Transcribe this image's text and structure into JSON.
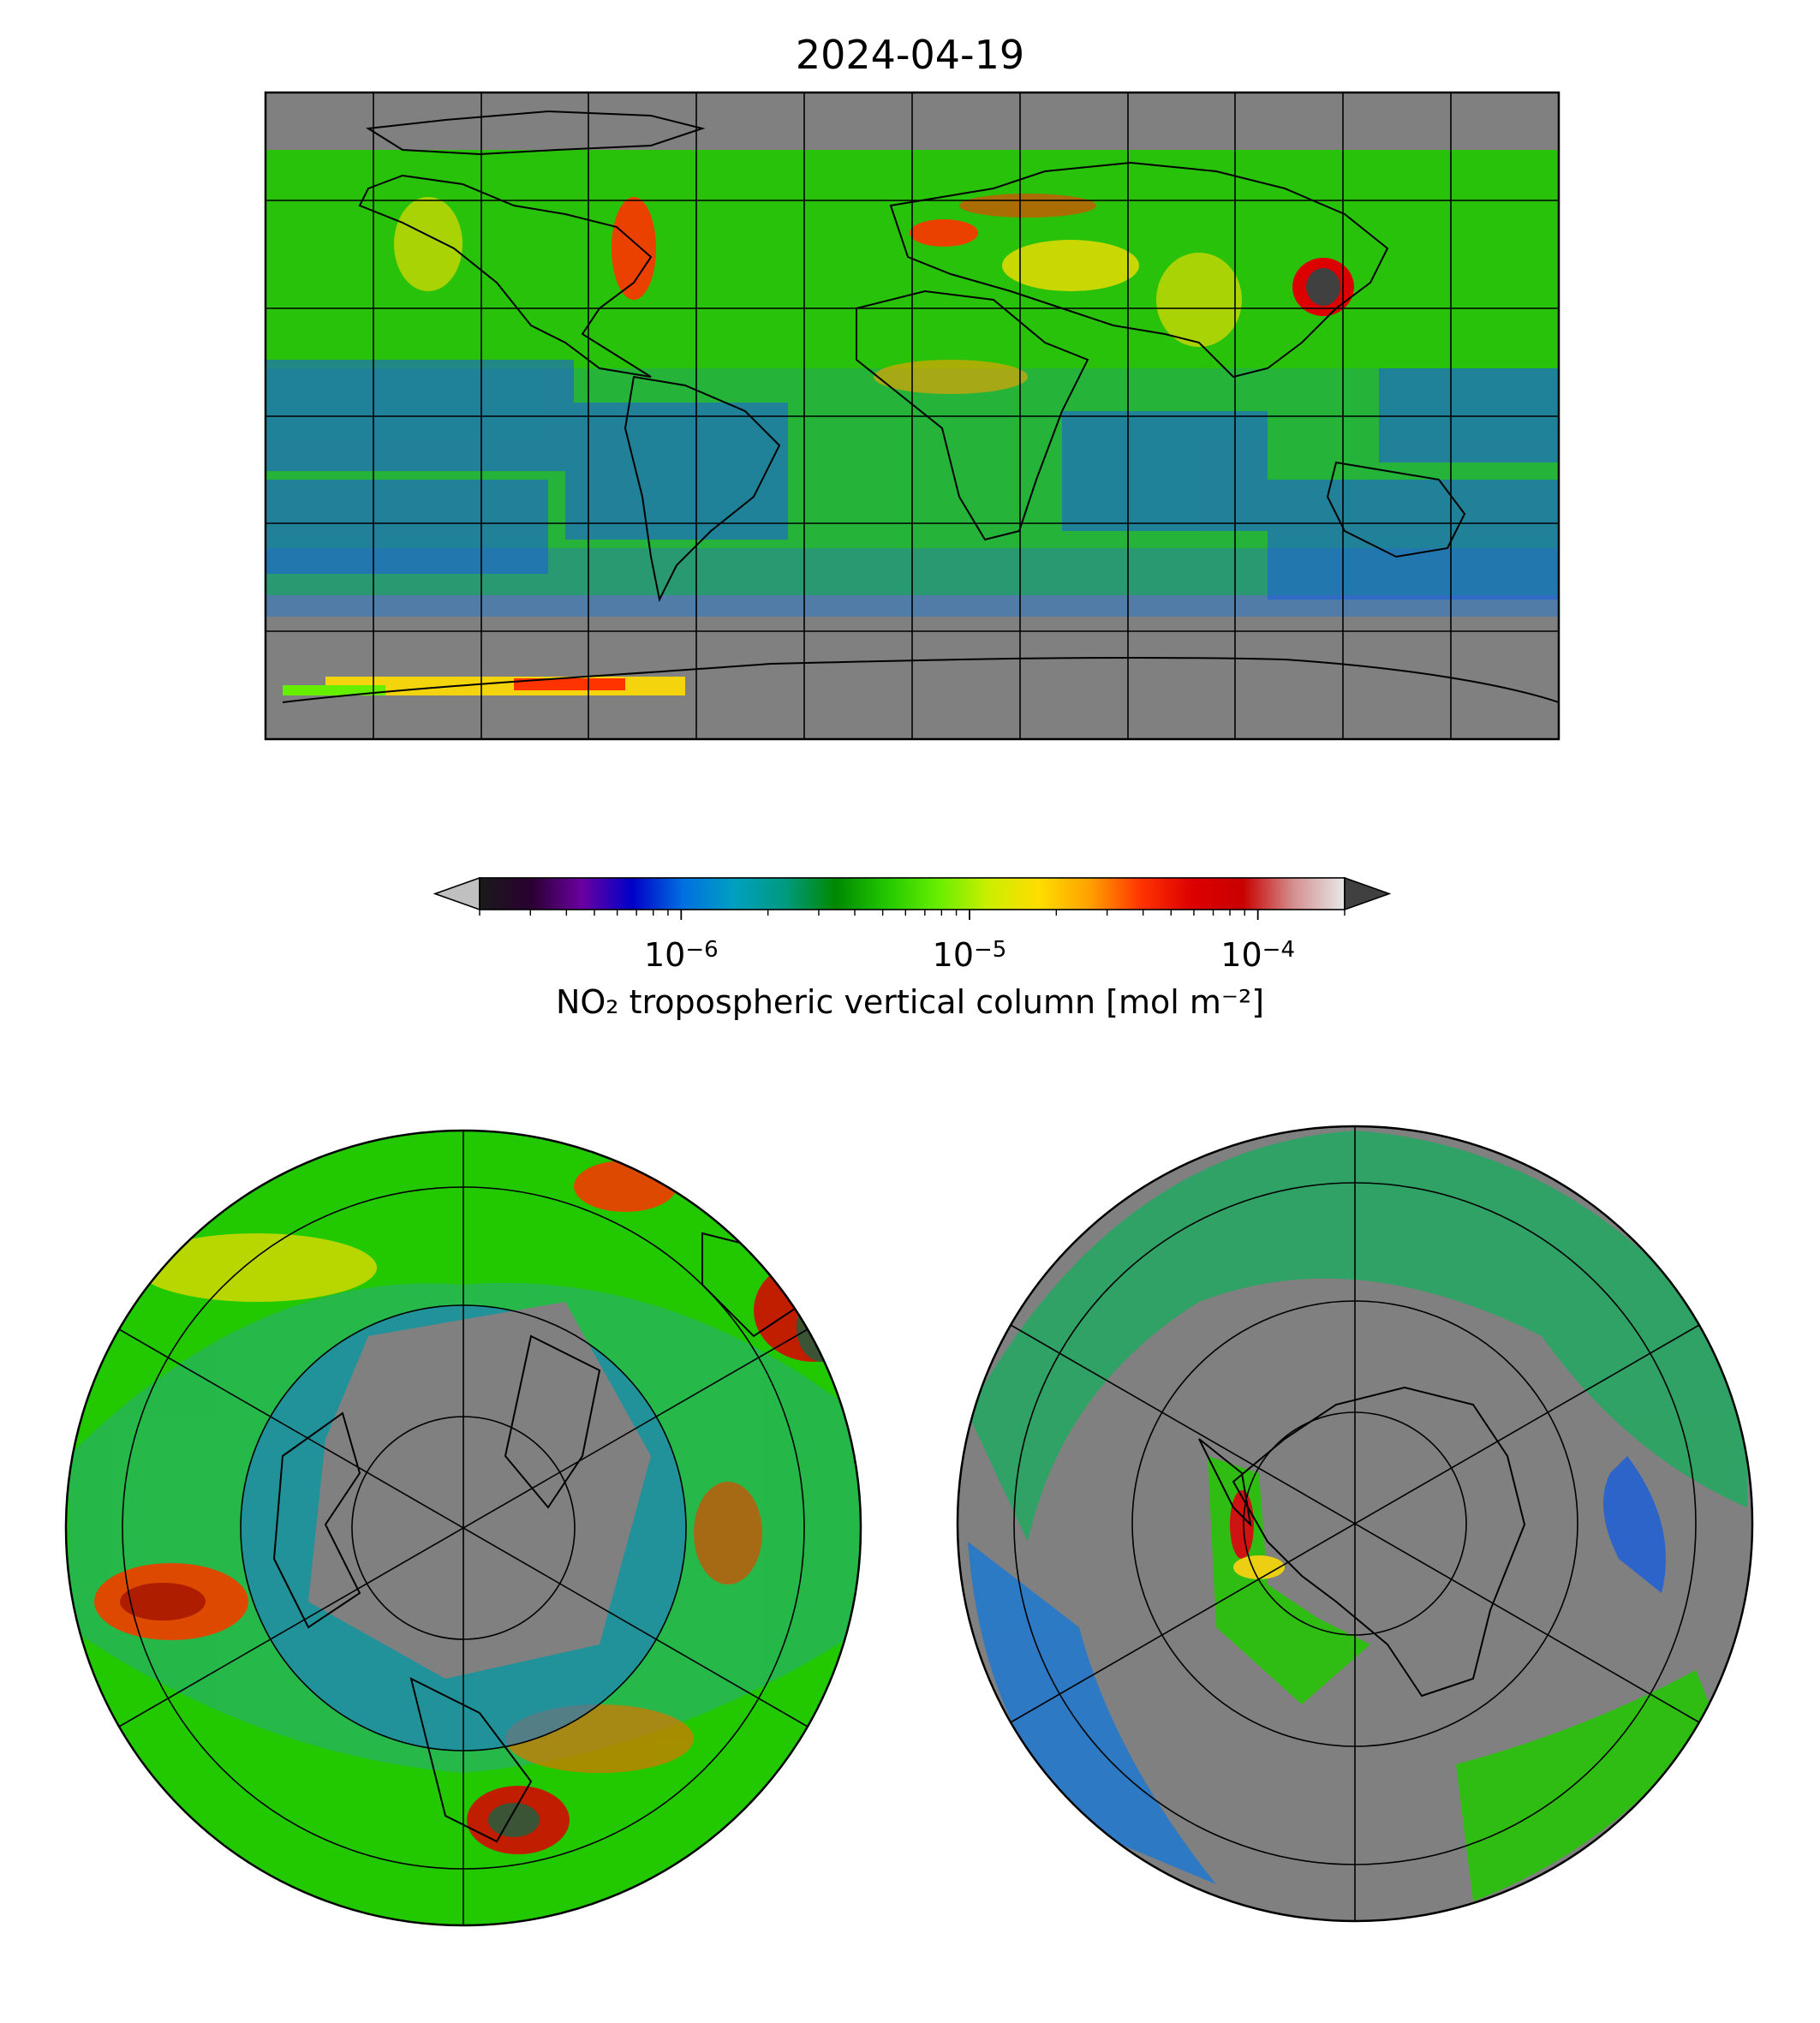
{
  "title": "2024-04-19",
  "colorbar": {
    "label": "NO₂ tropospheric vertical column [mol m⁻²]",
    "scale": "log",
    "range": [
      2e-07,
      0.0002
    ],
    "extend": "both",
    "ticks": [
      {
        "base": "10",
        "exp": "−6",
        "value": 1e-06
      },
      {
        "base": "10",
        "exp": "−5",
        "value": 1e-05
      },
      {
        "base": "10",
        "exp": "−4",
        "value": 0.0001
      }
    ],
    "colors": [
      "#1a1a1a",
      "#2a0030",
      "#6a00a0",
      "#0000c8",
      "#0070e0",
      "#00a0c0",
      "#009a80",
      "#008800",
      "#22c800",
      "#66ee00",
      "#ccee00",
      "#ffdd00",
      "#ffa000",
      "#ff3300",
      "#dd0000",
      "#c80000",
      "#d49090",
      "#e8e8e8"
    ],
    "under_color": "#c0c0c0",
    "over_color": "#404040"
  },
  "maps": {
    "global": {
      "projection": "plate carree",
      "nodata_color": "#808080"
    },
    "north_polar": {
      "projection": "north polar stereographic"
    },
    "south_polar": {
      "projection": "south polar stereographic"
    }
  }
}
